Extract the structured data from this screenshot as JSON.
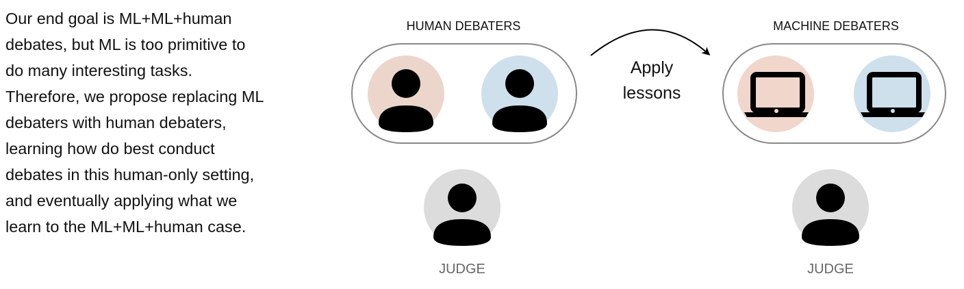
{
  "description": {
    "lines": [
      "Our end goal is ML+ML+human",
      "debates, but ML is too primitive to",
      "do many interesting tasks.",
      "Therefore, we propose replacing ML",
      "debaters with human debaters,",
      "learning how do best conduct",
      "debates in this human-only setting,",
      "and eventually applying what we",
      "learn to the ML+ML+human case."
    ]
  },
  "human_group": {
    "title": "HUMAN DEBATERS",
    "members": [
      {
        "icon": "person-icon",
        "color": "#ecd6cb"
      },
      {
        "icon": "person-icon",
        "color": "#cde0ec"
      }
    ],
    "judge_label": "JUDGE"
  },
  "machine_group": {
    "title": "MACHINE DEBATERS",
    "members": [
      {
        "icon": "laptop-icon",
        "color": "#f1d6cc"
      },
      {
        "icon": "laptop-icon",
        "color": "#cde0ec"
      }
    ],
    "judge_label": "JUDGE"
  },
  "arrow": {
    "line1": "Apply",
    "line2": "lessons"
  },
  "colors": {
    "judge_circle": "#dcdcdc",
    "outline": "#888888",
    "icon": "#000000"
  }
}
